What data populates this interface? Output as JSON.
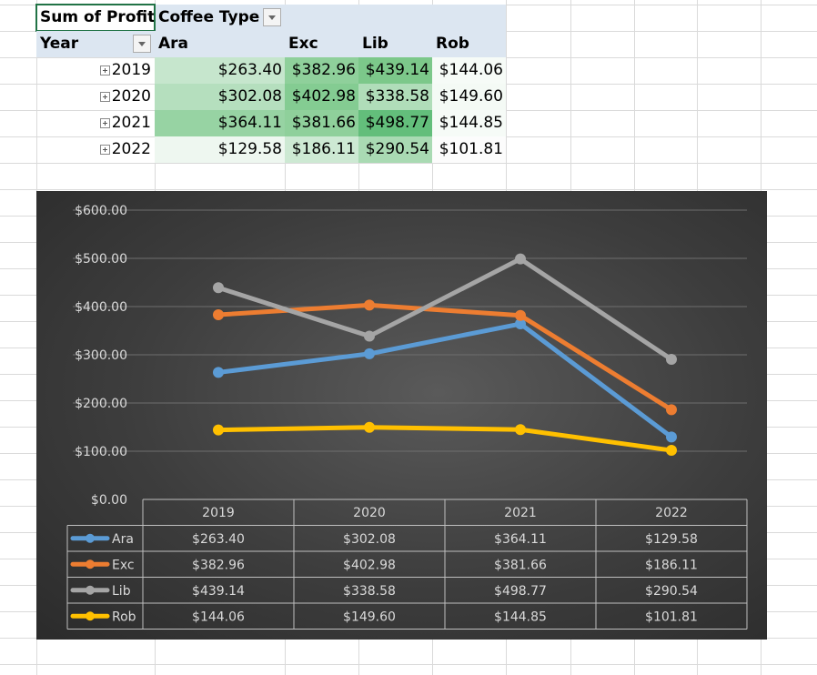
{
  "pivot": {
    "header_label": "Sum of Profit",
    "column_field": "Coffee Type",
    "row_field": "Year",
    "columns": [
      "Ara",
      "Exc",
      "Lib",
      "Rob"
    ],
    "rows": [
      {
        "year": "2019",
        "values": [
          "$263.40",
          "$382.96",
          "$439.14",
          "$144.06"
        ]
      },
      {
        "year": "2020",
        "values": [
          "$302.08",
          "$402.98",
          "$338.58",
          "$149.60"
        ]
      },
      {
        "year": "2021",
        "values": [
          "$364.11",
          "$381.66",
          "$498.77",
          "$144.85"
        ]
      },
      {
        "year": "2022",
        "values": [
          "$129.58",
          "$186.11",
          "$290.54",
          "$101.81"
        ]
      }
    ],
    "heat_colors": [
      [
        "#c6e6cd",
        "#8fd09b",
        "#7cc88a",
        "#f6fbf7"
      ],
      [
        "#b5dfbe",
        "#84cc92",
        "#b0ddb9",
        "#f4faf5"
      ],
      [
        "#97d3a3",
        "#8fd09b",
        "#63be7b",
        "#f6fbf7"
      ],
      [
        "#eef7f0",
        "#cde9d3",
        "#a9dab3",
        "#fcfcfc"
      ]
    ]
  },
  "chart_data": {
    "type": "line",
    "categories": [
      "2019",
      "2020",
      "2021",
      "2022"
    ],
    "series": [
      {
        "name": "Ara",
        "color": "#5b9bd5",
        "values": [
          263.4,
          302.08,
          364.11,
          129.58
        ],
        "labels": [
          "$263.40",
          "$302.08",
          "$364.11",
          "$129.58"
        ]
      },
      {
        "name": "Exc",
        "color": "#ed7d31",
        "values": [
          382.96,
          402.98,
          381.66,
          186.11
        ],
        "labels": [
          "$382.96",
          "$402.98",
          "$381.66",
          "$186.11"
        ]
      },
      {
        "name": "Lib",
        "color": "#a5a5a5",
        "values": [
          439.14,
          338.58,
          498.77,
          290.54
        ],
        "labels": [
          "$439.14",
          "$338.58",
          "$498.77",
          "$290.54"
        ]
      },
      {
        "name": "Rob",
        "color": "#ffc000",
        "values": [
          144.06,
          149.6,
          144.85,
          101.81
        ],
        "labels": [
          "$144.06",
          "$149.60",
          "$144.85",
          "$101.81"
        ]
      }
    ],
    "ylim": [
      0,
      600
    ],
    "yticks": [
      0,
      100,
      200,
      300,
      400,
      500,
      600
    ],
    "ytick_labels": [
      "$0.00",
      "$100.00",
      "$200.00",
      "$300.00",
      "$400.00",
      "$500.00",
      "$600.00"
    ],
    "gridlines": true,
    "data_table": true,
    "legend": "in data table"
  }
}
